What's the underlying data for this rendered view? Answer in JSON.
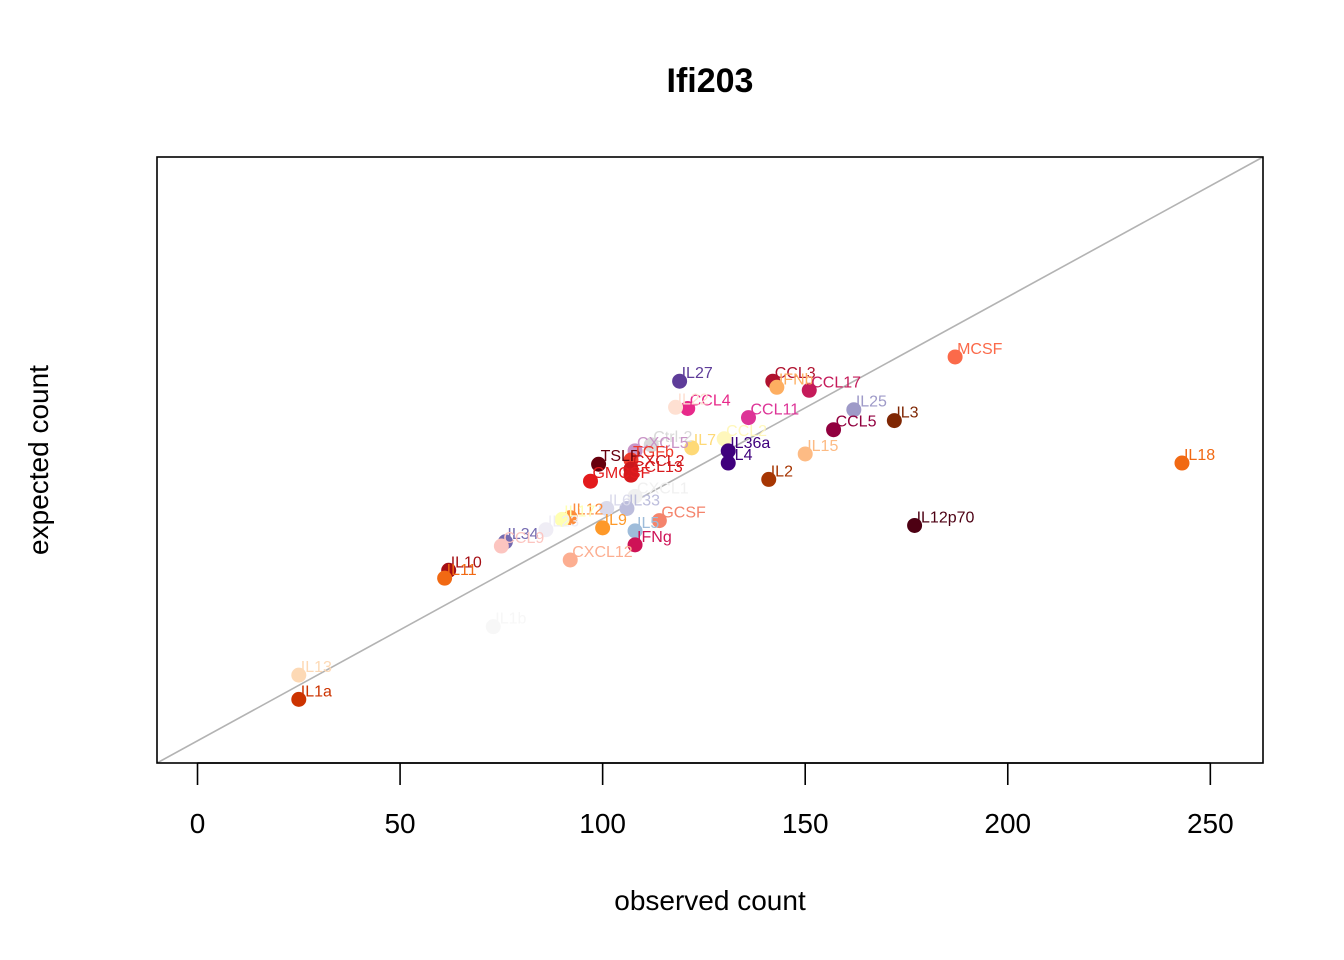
{
  "chart_data": {
    "type": "scatter",
    "title": "Ifi203",
    "xlabel": "observed count",
    "ylabel": "expected count",
    "xlim": [
      -10,
      263
    ],
    "ylim": [
      0,
      100
    ],
    "xticks": [
      0,
      50,
      100,
      150,
      200,
      250
    ],
    "yticks_shown": false,
    "grid": false,
    "reference_line": "identity",
    "reference_line_color": "#b3b3b3",
    "points": [
      {
        "label": "IL27",
        "x": 119,
        "y": 63,
        "color": "#5e3c99"
      },
      {
        "label": "CCL3",
        "x": 142,
        "y": 63,
        "color": "#b0122f"
      },
      {
        "label": "IFNb",
        "x": 143,
        "y": 62,
        "color": "#fdae61"
      },
      {
        "label": "CCL17",
        "x": 151,
        "y": 61.5,
        "color": "#c51b5a"
      },
      {
        "label": "MCSF",
        "x": 187,
        "y": 67,
        "color": "#fb6a4a"
      },
      {
        "label": "CCL4",
        "x": 121,
        "y": 58.5,
        "color": "#e7298a"
      },
      {
        "label": "IL22",
        "x": 118,
        "y": 58.7,
        "color": "#fee0d2"
      },
      {
        "label": "CCL11",
        "x": 136,
        "y": 57,
        "color": "#dd3497"
      },
      {
        "label": "IL25",
        "x": 162,
        "y": 58.3,
        "color": "#9e9ac8"
      },
      {
        "label": "IL3",
        "x": 172,
        "y": 56.5,
        "color": "#7f2704"
      },
      {
        "label": "CCL5",
        "x": 157,
        "y": 55,
        "color": "#91003f"
      },
      {
        "label": "Ctrl-2",
        "x": 112,
        "y": 52.5,
        "color": "#d9d9d9"
      },
      {
        "label": "CCL2",
        "x": 130,
        "y": 53.5,
        "color": "#fff7bc"
      },
      {
        "label": "IL7",
        "x": 122,
        "y": 52,
        "color": "#fed976"
      },
      {
        "label": "IL36a",
        "x": 131,
        "y": 51.5,
        "color": "#3f007d"
      },
      {
        "label": "CXCL5",
        "x": 108,
        "y": 51.5,
        "color": "#c994c7"
      },
      {
        "label": "IL15",
        "x": 150,
        "y": 51,
        "color": "#fdbb84"
      },
      {
        "label": "TSLP",
        "x": 99,
        "y": 49.3,
        "color": "#67000d"
      },
      {
        "label": "TGFb",
        "x": 107,
        "y": 50,
        "color": "#ef3b2c"
      },
      {
        "label": "IL4",
        "x": 131,
        "y": 49.5,
        "color": "#3f007d"
      },
      {
        "label": "CXCL2",
        "x": 107,
        "y": 48.5,
        "color": "#cb181d"
      },
      {
        "label": "CCL13",
        "x": 107,
        "y": 47.5,
        "color": "#d7191c"
      },
      {
        "label": "GMCSF",
        "x": 97,
        "y": 46.5,
        "color": "#e31a1c"
      },
      {
        "label": "IL2",
        "x": 141,
        "y": 46.8,
        "color": "#a63603"
      },
      {
        "label": "IL18",
        "x": 243,
        "y": 49.5,
        "color": "#f16913"
      },
      {
        "label": "CXCL1",
        "x": 108,
        "y": 44,
        "color": "#f0f0f0"
      },
      {
        "label": "IL33",
        "x": 106,
        "y": 42,
        "color": "#bcbddc"
      },
      {
        "label": "IL6",
        "x": 101,
        "y": 42,
        "color": "#dadaeb"
      },
      {
        "label": "IL12",
        "x": 92,
        "y": 40.5,
        "color": "#fd8d3c"
      },
      {
        "label": "IL17",
        "x": 90,
        "y": 40.2,
        "color": "#ffffb2"
      },
      {
        "label": "IL9",
        "x": 100,
        "y": 38.8,
        "color": "#fe9929"
      },
      {
        "label": "GCSF",
        "x": 114,
        "y": 40,
        "color": "#f4846c"
      },
      {
        "label": "IL5",
        "x": 108,
        "y": 38.3,
        "color": "#9ebcda"
      },
      {
        "label": "IFNg",
        "x": 108,
        "y": 36,
        "color": "#ce1256"
      },
      {
        "label": "IL12p70",
        "x": 177,
        "y": 39.2,
        "color": "#4d0013"
      },
      {
        "label": "IL34",
        "x": 76,
        "y": 36.5,
        "color": "#756bb1"
      },
      {
        "label": "IL23",
        "x": 86,
        "y": 38.5,
        "color": "#efedf5"
      },
      {
        "label": "CCL9",
        "x": 75,
        "y": 35.8,
        "color": "#fcc5c0"
      },
      {
        "label": "CXCL12",
        "x": 92,
        "y": 33.5,
        "color": "#fcae91"
      },
      {
        "label": "IL10",
        "x": 62,
        "y": 31.8,
        "color": "#a50f15"
      },
      {
        "label": "IL11",
        "x": 61,
        "y": 30.5,
        "color": "#f16913"
      },
      {
        "label": "IL1b",
        "x": 73,
        "y": 22.5,
        "color": "#f7f7f7"
      },
      {
        "label": "IL13",
        "x": 25,
        "y": 14.5,
        "color": "#fdd9b5"
      },
      {
        "label": "IL1a",
        "x": 25,
        "y": 10.5,
        "color": "#cc3300"
      }
    ]
  }
}
